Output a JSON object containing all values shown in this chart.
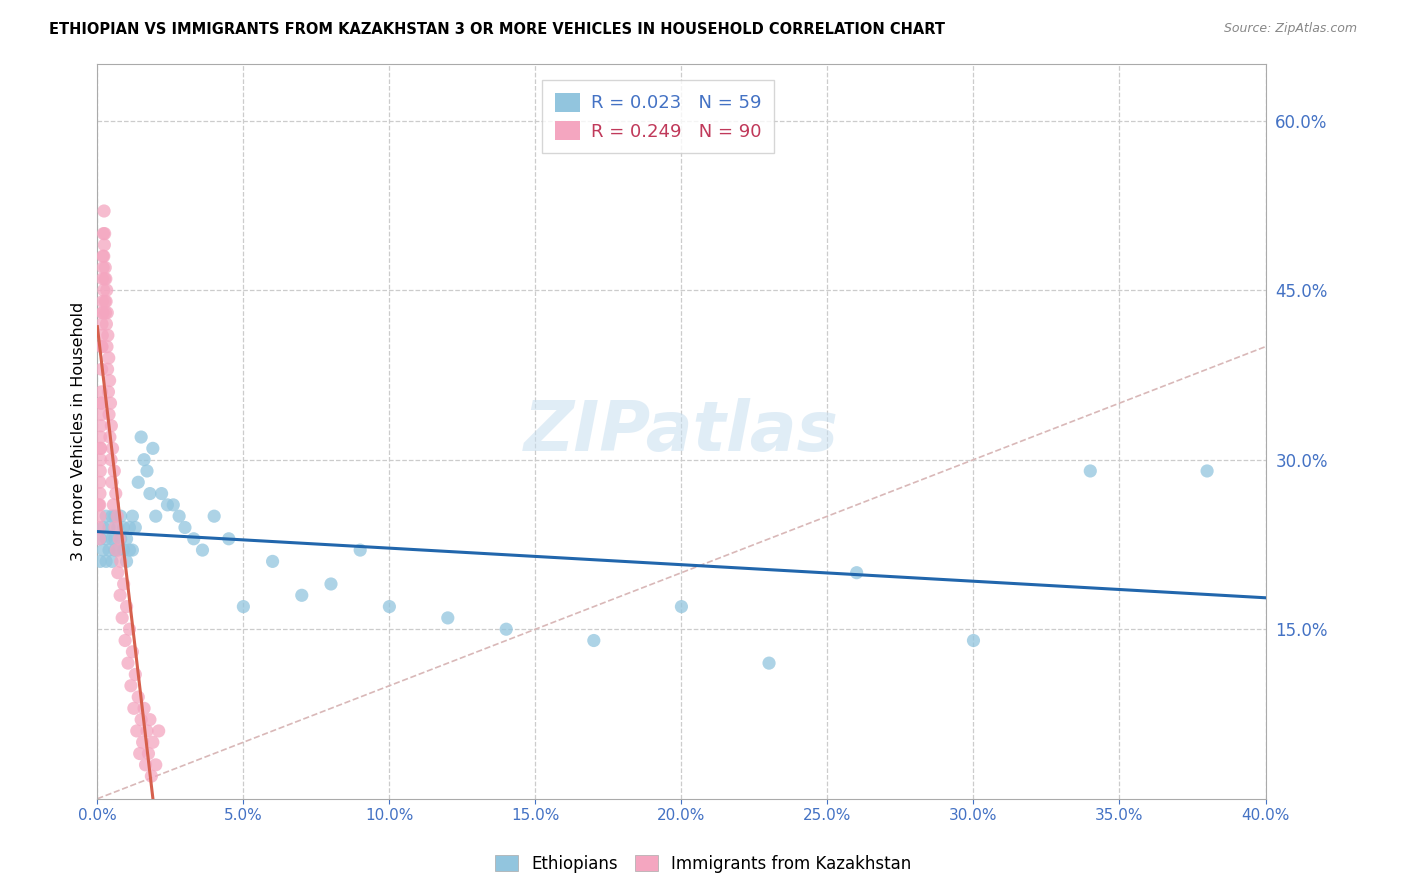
{
  "title": "ETHIOPIAN VS IMMIGRANTS FROM KAZAKHSTAN 3 OR MORE VEHICLES IN HOUSEHOLD CORRELATION CHART",
  "source": "Source: ZipAtlas.com",
  "ylabel": "3 or more Vehicles in Household",
  "legend_label_ethiopians": "Ethiopians",
  "legend_label_kazakhstan": "Immigrants from Kazakhstan",
  "scatter1_color": "#92c5de",
  "scatter2_color": "#f4a6c0",
  "trendline1_color": "#2166ac",
  "trendline2_color": "#d6604d",
  "diagonal_color": "#d9b8b8",
  "watermark": "ZIPatlas",
  "xmin": 0.0,
  "xmax": 0.4,
  "ymin": 0.0,
  "ymax": 0.65,
  "ethiopian_x": [
    0.001,
    0.001,
    0.002,
    0.002,
    0.003,
    0.003,
    0.003,
    0.004,
    0.004,
    0.005,
    0.005,
    0.005,
    0.006,
    0.006,
    0.006,
    0.007,
    0.007,
    0.008,
    0.008,
    0.009,
    0.009,
    0.01,
    0.01,
    0.011,
    0.011,
    0.012,
    0.012,
    0.013,
    0.014,
    0.015,
    0.016,
    0.017,
    0.018,
    0.019,
    0.02,
    0.022,
    0.024,
    0.026,
    0.028,
    0.03,
    0.033,
    0.036,
    0.04,
    0.045,
    0.05,
    0.06,
    0.07,
    0.08,
    0.09,
    0.1,
    0.12,
    0.14,
    0.17,
    0.2,
    0.23,
    0.26,
    0.3,
    0.34,
    0.38
  ],
  "ethiopian_y": [
    0.23,
    0.21,
    0.24,
    0.22,
    0.23,
    0.25,
    0.21,
    0.22,
    0.24,
    0.25,
    0.23,
    0.21,
    0.25,
    0.23,
    0.22,
    0.24,
    0.22,
    0.25,
    0.23,
    0.24,
    0.22,
    0.21,
    0.23,
    0.24,
    0.22,
    0.25,
    0.22,
    0.24,
    0.28,
    0.32,
    0.3,
    0.29,
    0.27,
    0.31,
    0.25,
    0.27,
    0.26,
    0.26,
    0.25,
    0.24,
    0.23,
    0.22,
    0.25,
    0.23,
    0.17,
    0.21,
    0.18,
    0.19,
    0.22,
    0.17,
    0.16,
    0.15,
    0.14,
    0.17,
    0.12,
    0.2,
    0.14,
    0.29,
    0.29
  ],
  "kazakhstan_x": [
    0.0005,
    0.0006,
    0.0007,
    0.0008,
    0.0008,
    0.0009,
    0.0009,
    0.001,
    0.001,
    0.0011,
    0.0011,
    0.0012,
    0.0012,
    0.0013,
    0.0013,
    0.0014,
    0.0014,
    0.0015,
    0.0015,
    0.0016,
    0.0016,
    0.0017,
    0.0017,
    0.0018,
    0.0018,
    0.0019,
    0.002,
    0.002,
    0.0021,
    0.0022,
    0.0022,
    0.0023,
    0.0024,
    0.0025,
    0.0025,
    0.0026,
    0.0027,
    0.0028,
    0.0029,
    0.003,
    0.0031,
    0.0032,
    0.0033,
    0.0034,
    0.0035,
    0.0036,
    0.0038,
    0.0039,
    0.004,
    0.0042,
    0.0043,
    0.0045,
    0.0047,
    0.0048,
    0.005,
    0.0052,
    0.0055,
    0.0058,
    0.006,
    0.0063,
    0.0065,
    0.0068,
    0.007,
    0.0075,
    0.0078,
    0.008,
    0.0085,
    0.009,
    0.0095,
    0.01,
    0.0105,
    0.011,
    0.0115,
    0.012,
    0.0125,
    0.013,
    0.0135,
    0.014,
    0.0145,
    0.015,
    0.0155,
    0.016,
    0.0165,
    0.017,
    0.0175,
    0.018,
    0.0185,
    0.019,
    0.02,
    0.021
  ],
  "kazakhstan_y": [
    0.26,
    0.24,
    0.23,
    0.28,
    0.26,
    0.25,
    0.27,
    0.31,
    0.29,
    0.32,
    0.3,
    0.33,
    0.31,
    0.35,
    0.34,
    0.36,
    0.35,
    0.4,
    0.38,
    0.42,
    0.4,
    0.43,
    0.41,
    0.46,
    0.44,
    0.48,
    0.43,
    0.47,
    0.5,
    0.45,
    0.48,
    0.52,
    0.49,
    0.46,
    0.5,
    0.44,
    0.47,
    0.43,
    0.46,
    0.44,
    0.42,
    0.45,
    0.4,
    0.43,
    0.38,
    0.41,
    0.36,
    0.39,
    0.34,
    0.37,
    0.32,
    0.35,
    0.3,
    0.33,
    0.28,
    0.31,
    0.26,
    0.29,
    0.24,
    0.27,
    0.22,
    0.25,
    0.2,
    0.23,
    0.18,
    0.21,
    0.16,
    0.19,
    0.14,
    0.17,
    0.12,
    0.15,
    0.1,
    0.13,
    0.08,
    0.11,
    0.06,
    0.09,
    0.04,
    0.07,
    0.05,
    0.08,
    0.03,
    0.06,
    0.04,
    0.07,
    0.02,
    0.05,
    0.03,
    0.06
  ]
}
